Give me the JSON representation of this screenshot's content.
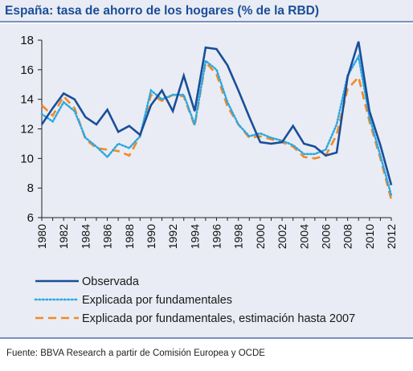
{
  "title": "España: tasa de ahorro de los hogares (% de la RBD)",
  "source": "Fuente: BBVA Research a partir de Comisión Europea y OCDE",
  "colors": {
    "observed": "#1a4e99",
    "fundamentals": "#2da8e0",
    "estimated": "#f08a24",
    "background": "#e9ecf4"
  },
  "chart_data": {
    "type": "line",
    "xlabel": "",
    "ylabel": "",
    "xlim": [
      1980,
      2012
    ],
    "ylim": [
      6,
      18
    ],
    "yticks": [
      6,
      8,
      10,
      12,
      14,
      16,
      18
    ],
    "xticks": [
      1980,
      1982,
      1984,
      1986,
      1988,
      1990,
      1992,
      1994,
      1996,
      1998,
      2000,
      2002,
      2004,
      2006,
      2008,
      2010,
      2012
    ],
    "grid": false,
    "legend_position": "bottom",
    "series": [
      {
        "name": "Observada",
        "style": "solid",
        "x": [
          1980,
          1981,
          1982,
          1983,
          1984,
          1985,
          1986,
          1987,
          1988,
          1989,
          1990,
          1991,
          1992,
          1993,
          1994,
          1995,
          1996,
          1997,
          1998,
          1999,
          2000,
          2001,
          2002,
          2003,
          2004,
          2005,
          2006,
          2007,
          2008,
          2009,
          2010,
          2011,
          2012
        ],
        "y": [
          12.3,
          13.4,
          14.4,
          14.0,
          12.8,
          12.3,
          13.3,
          11.8,
          12.2,
          11.6,
          13.6,
          14.6,
          13.2,
          15.6,
          13.2,
          17.5,
          17.4,
          16.3,
          14.6,
          12.8,
          11.1,
          11.0,
          11.1,
          12.2,
          11.0,
          10.8,
          10.2,
          10.4,
          15.5,
          17.9,
          13.2,
          10.9,
          8.2
        ]
      },
      {
        "name": "Explicada por fundamentales",
        "style": "dotted",
        "x": [
          1980,
          1981,
          1982,
          1983,
          1984,
          1985,
          1986,
          1987,
          1988,
          1989,
          1990,
          1991,
          1992,
          1993,
          1994,
          1995,
          1996,
          1997,
          1998,
          1999,
          2000,
          2001,
          2002,
          2003,
          2004,
          2005,
          2006,
          2007,
          2008,
          2009,
          2010,
          2011,
          2012
        ],
        "y": [
          13.0,
          12.5,
          13.8,
          13.2,
          11.4,
          10.8,
          10.1,
          11.0,
          10.7,
          11.5,
          14.6,
          14.0,
          14.3,
          14.3,
          12.3,
          16.6,
          16.0,
          13.8,
          12.3,
          11.5,
          11.7,
          11.4,
          11.2,
          10.9,
          10.3,
          10.3,
          10.6,
          12.3,
          15.6,
          16.9,
          12.8,
          10.2,
          7.5
        ]
      },
      {
        "name": "Explicada por fundamentales, estimación hasta 2007",
        "style": "dashed",
        "x": [
          1980,
          1981,
          1982,
          1983,
          1984,
          1985,
          1986,
          1987,
          1988,
          1989,
          1990,
          1991,
          1992,
          1993,
          1994,
          1995,
          1996,
          1997,
          1998,
          1999,
          2000,
          2001,
          2002,
          2003,
          2004,
          2005,
          2006,
          2007,
          2008,
          2009,
          2010,
          2011,
          2012
        ],
        "y": [
          13.6,
          12.9,
          14.2,
          13.4,
          11.3,
          10.7,
          10.6,
          10.5,
          10.2,
          11.5,
          14.3,
          13.9,
          14.3,
          14.2,
          12.2,
          16.5,
          15.7,
          13.5,
          12.3,
          11.4,
          11.5,
          11.3,
          11.1,
          10.8,
          10.1,
          10.0,
          10.2,
          11.6,
          14.7,
          15.5,
          12.5,
          10.0,
          7.2
        ]
      }
    ]
  }
}
